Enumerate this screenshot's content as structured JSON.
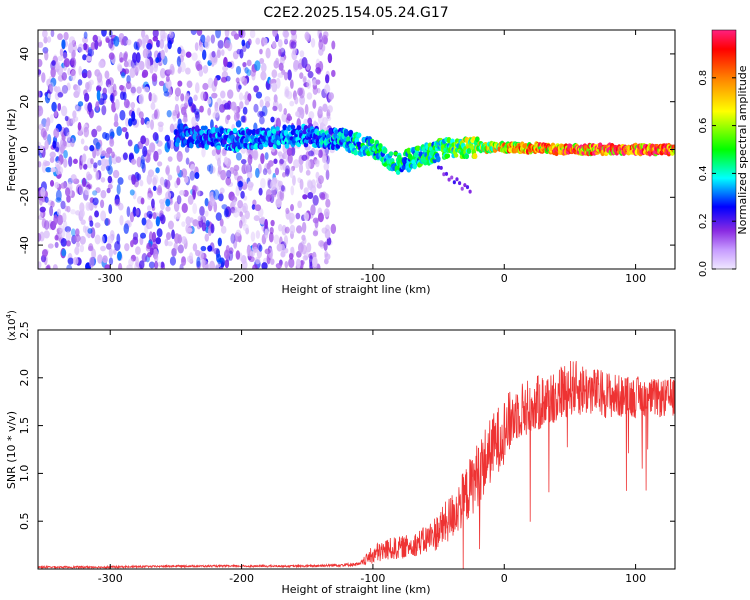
{
  "title": "C2E2.2025.154.05.24.G17",
  "chart_data": [
    {
      "type": "heatmap",
      "title": "C2E2.2025.154.05.24.G17",
      "xlabel": "Height of straight line (km)",
      "ylabel": "Frequency (Hz)",
      "xlim": [
        -355,
        130
      ],
      "ylim": [
        -50,
        50
      ],
      "xticks": [
        -300,
        -200,
        -100,
        0,
        100
      ],
      "yticks": [
        -40,
        -20,
        0,
        20,
        40
      ],
      "colorbar": {
        "label": "Normalized spectral amplitude",
        "range": [
          0,
          1
        ],
        "ticks": [
          0.0,
          0.2,
          0.4,
          0.6,
          0.8
        ],
        "colormap": [
          "#f0e8ff",
          "#8a2be2",
          "#0000ff",
          "#00ffff",
          "#00ff00",
          "#ffff00",
          "#ff8000",
          "#ff0000",
          "#ff2080"
        ]
      },
      "features": {
        "noise_region_x": [
          -355,
          -130
        ],
        "signal_ridge": [
          {
            "x": -250,
            "freq": 6,
            "amp": 0.3
          },
          {
            "x": -200,
            "freq": 4,
            "amp": 0.35
          },
          {
            "x": -150,
            "freq": 6,
            "amp": 0.35
          },
          {
            "x": -120,
            "freq": 4,
            "amp": 0.4
          },
          {
            "x": -100,
            "freq": 0,
            "amp": 0.45
          },
          {
            "x": -80,
            "freq": -6,
            "amp": 0.45
          },
          {
            "x": -50,
            "freq": 0,
            "amp": 0.5
          },
          {
            "x": -20,
            "freq": 1,
            "amp": 0.65
          },
          {
            "x": 0,
            "freq": 1,
            "amp": 0.75
          },
          {
            "x": 50,
            "freq": 0,
            "amp": 0.9
          },
          {
            "x": 130,
            "freq": 0,
            "amp": 0.95
          }
        ]
      }
    },
    {
      "type": "line",
      "xlabel": "Height of straight line (km)",
      "ylabel": "SNR (10 * v/v)",
      "y_multiplier": "(x10",
      "y_multiplier_exp": "4",
      "y_multiplier_close": ")",
      "xlim": [
        -355,
        130
      ],
      "ylim": [
        0,
        2.5
      ],
      "xticks": [
        -300,
        -200,
        -100,
        0,
        100
      ],
      "yticks": [
        0.5,
        1.0,
        1.5,
        2.0,
        2.5
      ],
      "series": [
        {
          "name": "SNR",
          "color": "#ee3333",
          "x": [
            -355,
            -300,
            -250,
            -200,
            -150,
            -110,
            -100,
            -90,
            -80,
            -70,
            -60,
            -50,
            -40,
            -30,
            -20,
            -10,
            0,
            10,
            20,
            30,
            40,
            50,
            60,
            70,
            80,
            90,
            100,
            110,
            120,
            130
          ],
          "mean": [
            0.02,
            0.02,
            0.03,
            0.03,
            0.03,
            0.05,
            0.15,
            0.2,
            0.22,
            0.25,
            0.3,
            0.4,
            0.55,
            0.75,
            1.0,
            1.25,
            1.45,
            1.65,
            1.7,
            1.75,
            1.82,
            1.9,
            1.88,
            1.85,
            1.82,
            1.8,
            1.8,
            1.8,
            1.78,
            1.8
          ],
          "spread": [
            0.01,
            0.01,
            0.01,
            0.01,
            0.01,
            0.02,
            0.1,
            0.12,
            0.12,
            0.12,
            0.15,
            0.2,
            0.25,
            0.3,
            0.35,
            0.35,
            0.35,
            0.3,
            0.3,
            0.3,
            0.3,
            0.3,
            0.28,
            0.25,
            0.25,
            0.22,
            0.22,
            0.2,
            0.2,
            0.2
          ]
        }
      ]
    }
  ]
}
